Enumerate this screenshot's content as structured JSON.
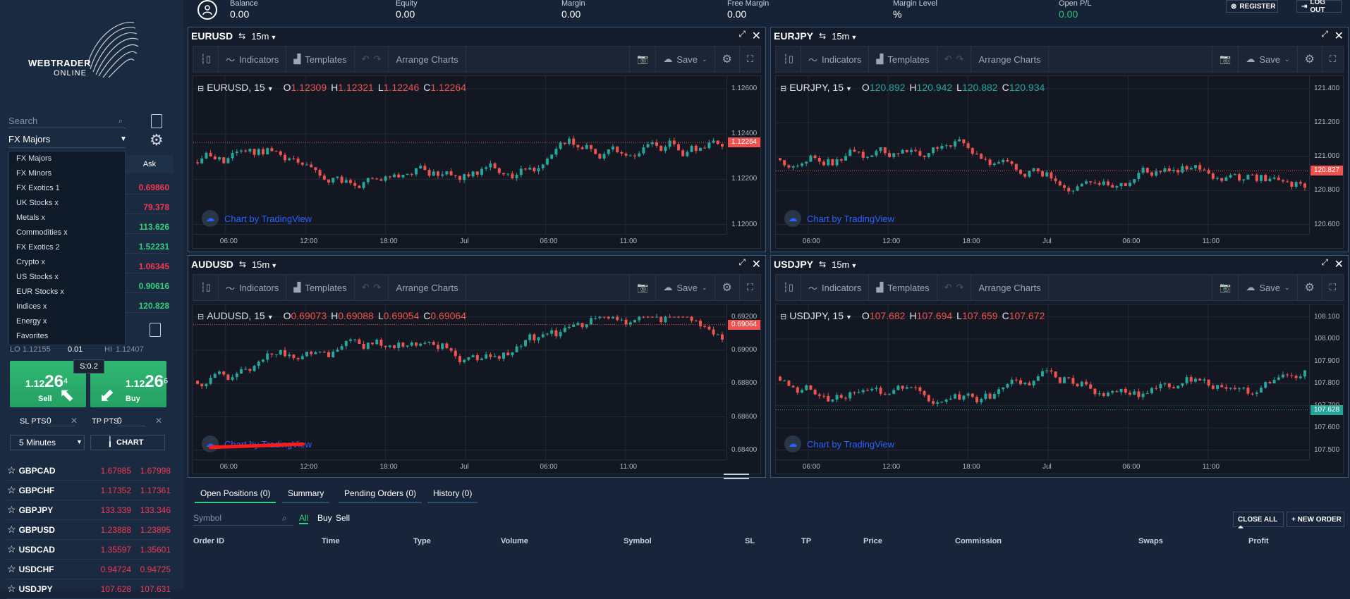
{
  "account": {
    "balance_label": "Balance",
    "balance": "0.00",
    "equity_label": "Equity",
    "equity": "0.00",
    "margin_label": "Margin",
    "margin": "0.00",
    "free_margin_label": "Free Margin",
    "free_margin": "0.00",
    "margin_level_label": "Margin Level",
    "margin_level": "%",
    "open_pl_label": "Open P/L",
    "open_pl": "0.00",
    "register_label": "REGISTER",
    "logout_label": "LOG OUT"
  },
  "brand": {
    "name": "WEBTRADER",
    "sub": "ONLINE"
  },
  "sidebar": {
    "search_placeholder": "Search",
    "category_selected": "FX Majors",
    "ask_header": "Ask",
    "categories": [
      "FX Majors",
      "FX Minors",
      "FX Exotics 1",
      "UK Stocks x",
      "Metals x",
      "Commodities x",
      "FX Exotics 2",
      "Crypto x",
      "US Stocks x",
      "EUR Stocks x",
      "Indices x",
      "Energy x",
      "Favorites"
    ],
    "hidden_prices": [
      {
        "value": "0.69860",
        "color": "red"
      },
      {
        "value": "79.378",
        "color": "red"
      },
      {
        "value": "113.626",
        "color": "green"
      },
      {
        "value": "1.52231",
        "color": "green"
      },
      {
        "value": "1.06345",
        "color": "red"
      },
      {
        "value": "0.90616",
        "color": "green"
      },
      {
        "value": "120.828",
        "color": "green"
      }
    ],
    "lo_label": "LO",
    "lo_value": "1.12155",
    "spread_small": "0.01",
    "hi_label": "HI",
    "hi_value": "1.12407",
    "spread_tip": "S:0.2",
    "sell": {
      "prefix": "1.12",
      "big": "26",
      "sup": "4",
      "label": "Sell"
    },
    "buy": {
      "prefix": "1.12",
      "big": "26",
      "sup": "6",
      "label": "Buy"
    },
    "sl_label": "SL PTS",
    "sl_value": "0",
    "tp_label": "TP PTS",
    "tp_value": "0",
    "interval": "5 Minutes",
    "chart_btn": "CHART",
    "pairs": [
      {
        "symbol": "GBPCAD",
        "bid": "1.67985",
        "ask": "1.67998"
      },
      {
        "symbol": "GBPCHF",
        "bid": "1.17352",
        "ask": "1.17361"
      },
      {
        "symbol": "GBPJPY",
        "bid": "133.339",
        "ask": "133.346"
      },
      {
        "symbol": "GBPUSD",
        "bid": "1.23888",
        "ask": "1.23895"
      },
      {
        "symbol": "USDCAD",
        "bid": "1.35597",
        "ask": "1.35601"
      },
      {
        "symbol": "USDCHF",
        "bid": "0.94724",
        "ask": "0.94725"
      },
      {
        "symbol": "USDJPY",
        "bid": "107.628",
        "ask": "107.631"
      }
    ]
  },
  "toolbar": {
    "indicators": "Indicators",
    "templates": "Templates",
    "arrange": "Arrange Charts",
    "save": "Save"
  },
  "tv_label": "Chart by TradingView",
  "charts": [
    {
      "symbol": "EURUSD",
      "tf": "15m",
      "legend": "EURUSD, 15",
      "o": "1.12309",
      "h": "1.12321",
      "l": "1.12246",
      "c": "1.12264",
      "ohlc_color": "red",
      "yticks": [
        "1.12600",
        "1.12400",
        "1.12200",
        "1.12000"
      ],
      "last": "1.12264",
      "last_color": "#ef5350",
      "xticks": [
        "06:00",
        "12:00",
        "18:00",
        "Jul",
        "06:00",
        "11:00"
      ]
    },
    {
      "symbol": "EURJPY",
      "tf": "15m",
      "legend": "EURJPY, 15",
      "o": "120.892",
      "h": "120.942",
      "l": "120.882",
      "c": "120.934",
      "ohlc_color": "green",
      "yticks": [
        "121.400",
        "121.200",
        "121.000",
        "120.800",
        "120.600"
      ],
      "last": "120.827",
      "last_color": "#ef5350",
      "xticks": [
        "06:00",
        "12:00",
        "18:00",
        "Jul",
        "06:00",
        "11:00"
      ]
    },
    {
      "symbol": "AUDUSD",
      "tf": "15m",
      "legend": "AUDUSD, 15",
      "o": "0.69073",
      "h": "0.69088",
      "l": "0.69054",
      "c": "0.69064",
      "ohlc_color": "red",
      "yticks": [
        "0.69200",
        "0.69000",
        "0.68800",
        "0.68600",
        "0.68400"
      ],
      "last": "0.69064",
      "last_color": "#ef5350",
      "xticks": [
        "06:00",
        "12:00",
        "18:00",
        "Jul",
        "06:00",
        "11:00"
      ]
    },
    {
      "symbol": "USDJPY",
      "tf": "15m",
      "legend": "USDJPY, 15",
      "o": "107.682",
      "h": "107.694",
      "l": "107.659",
      "c": "107.672",
      "ohlc_color": "red",
      "yticks": [
        "108.100",
        "108.000",
        "107.900",
        "107.800",
        "107.700",
        "107.600",
        "107.500"
      ],
      "last": "107.628",
      "last_color": "#26a69a",
      "xticks": [
        "06:00",
        "12:00",
        "18:00",
        "Jul",
        "06:00",
        "11:00"
      ]
    }
  ],
  "bottom": {
    "tabs": [
      "Open Positions (0)",
      "Summary",
      "Pending Orders (0)",
      "History (0)"
    ],
    "symbol_placeholder": "Symbol",
    "filters": [
      "All",
      "Buy",
      "Sell"
    ],
    "close_all": "CLOSE ALL",
    "new_order": "NEW ORDER",
    "columns": [
      "Order ID",
      "Time",
      "Type",
      "Volume",
      "Symbol",
      "SL",
      "TP",
      "Price",
      "Commission",
      "Swaps",
      "Profit"
    ]
  },
  "colors": {
    "up": "#26a69a",
    "down": "#ef5350",
    "accent": "#35d07e"
  }
}
